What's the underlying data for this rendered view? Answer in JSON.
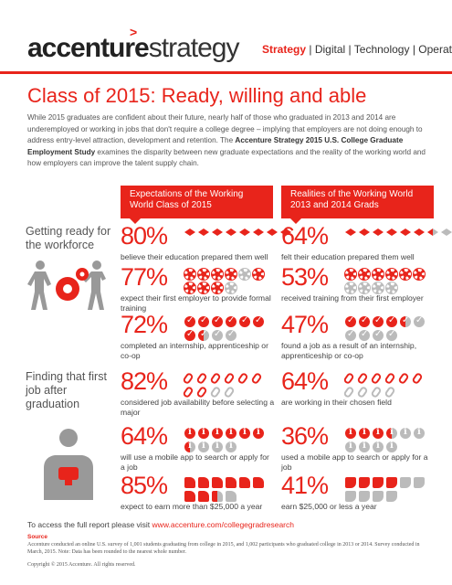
{
  "header": {
    "logo_text_bold": "accenture",
    "logo_text_light": "strategy",
    "logo_mark": ">",
    "tagline": [
      "Strategy",
      "Digital",
      "Technology",
      "Operations"
    ],
    "tagline_sep": " | ",
    "accent_color": "#e8241b"
  },
  "title": "Class of 2015: Ready, willing and able",
  "intro": {
    "text": "While 2015 graduates are confident about their future, nearly half of those who graduated in 2013 and 2014 are underemployed or working in jobs that don't require a college degree – implying that employers are not doing enough to address entry-level attraction, development and retention. The ",
    "bold": "Accenture Strategy 2015 U.S. College Graduate Employment Study",
    "text_after": " examines the disparity between new graduate expectations and the reality of the working world and how employers can improve the talent supply chain."
  },
  "columns": {
    "left": "Expectations of the Working World Class of 2015",
    "right": "Realities of the Working World 2013 and 2014 Grads"
  },
  "sections": {
    "ready": "Getting ready for the workforce",
    "finding": "Finding that first job after graduation"
  },
  "stats": {
    "s1": {
      "pct": "80%",
      "desc": "believe their education prepared them well"
    },
    "s2": {
      "pct": "64%",
      "desc": "felt their education prepared them well"
    },
    "s3": {
      "pct": "77%",
      "desc": "expect their first employer to provide formal training"
    },
    "s4": {
      "pct": "53%",
      "desc": "received training from their first employer"
    },
    "s5": {
      "pct": "72%",
      "desc": "completed an internship, apprenticeship or co-op"
    },
    "s6": {
      "pct": "47%",
      "desc": "found a job as a result of an internship, apprenticeship or co-op"
    },
    "s7": {
      "pct": "82%",
      "desc": "considered job availability before selecting a major"
    },
    "s8": {
      "pct": "64%",
      "desc": "are working in their chosen field"
    },
    "s9": {
      "pct": "64%",
      "desc": "will use a mobile app to search or apply for a job"
    },
    "s10": {
      "pct": "36%",
      "desc": "used a mobile app to search or apply for a job"
    },
    "s11": {
      "pct": "85%",
      "desc": "expect to earn more than $25,000 a year"
    },
    "s12": {
      "pct": "41%",
      "desc": "earn $25,000 or less a year"
    }
  },
  "footer": {
    "link_prefix": "To access the full report please visit ",
    "link_url": "www.accenture.com/collegegradresearch",
    "source_heading": "Source",
    "source_text": "Accenture conducted an online U.S. survey of 1,001 students graduating from college in 2015, and 1,002 participants who graduated college in 2013 or 2014. Survey conducted in March, 2015. Note: Data has been rounded to the nearest whole number.",
    "copyright": "Copyright © 2015 Accenture. All rights reserved."
  }
}
